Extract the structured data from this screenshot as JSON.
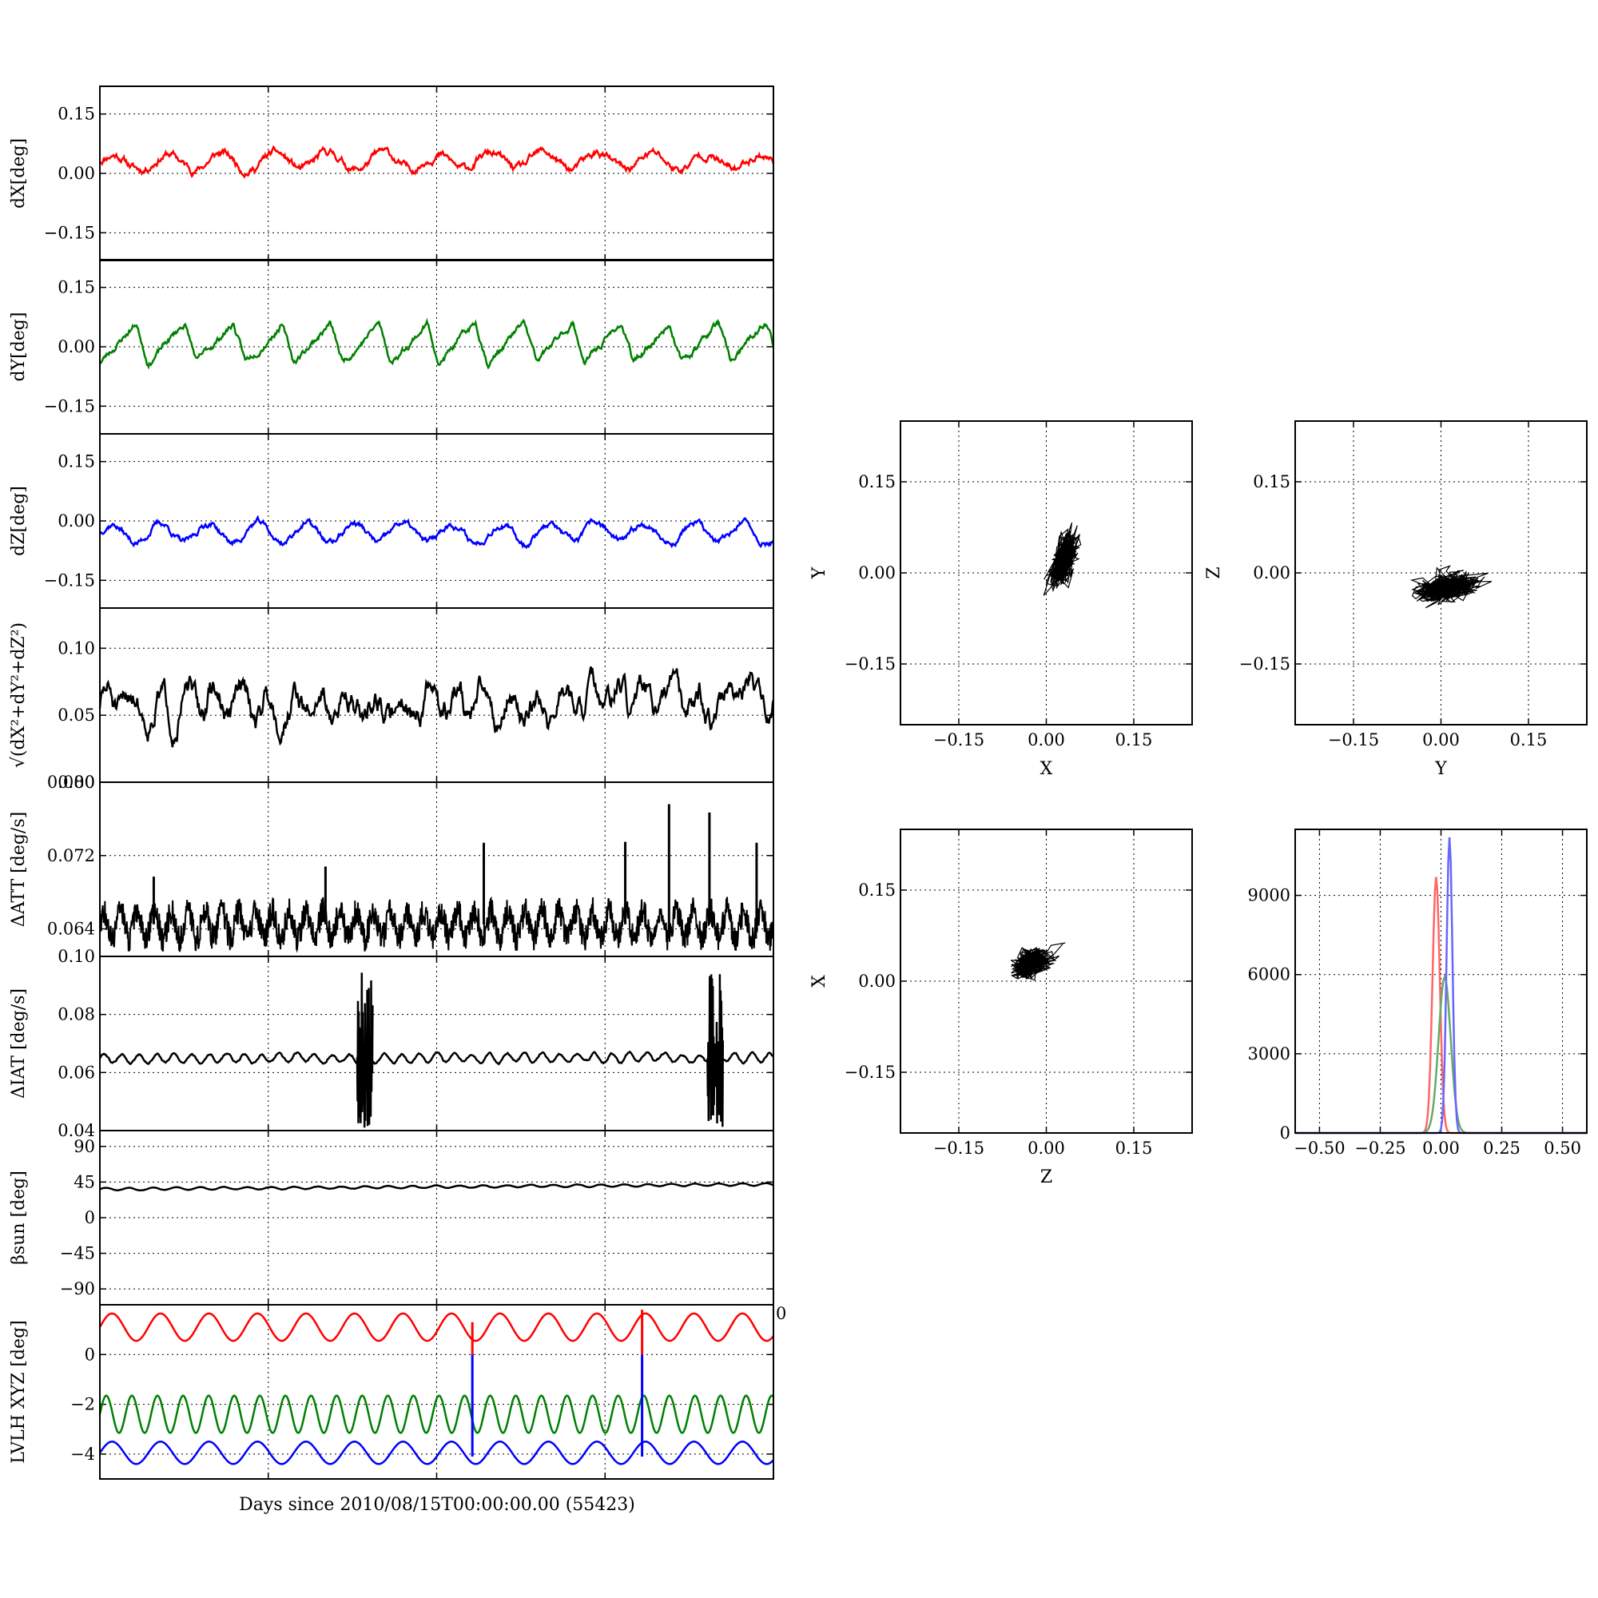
{
  "figure": {
    "xlabel": "Days since 2010/08/15T00:00:00.00 (55423)",
    "colors": {
      "red": "#ff0000",
      "green": "#008000",
      "blue": "#0000ff",
      "black": "#000000"
    }
  },
  "chart_data": [
    {
      "id": "dX",
      "type": "line",
      "ylabel": "dX[deg]",
      "ylim": [
        -0.22,
        0.22
      ],
      "yticks": [
        0.15,
        0.0,
        -0.15
      ],
      "ytick_labels": [
        "0.15",
        "0.00",
        "−0.15"
      ],
      "xlim": [
        0,
        1
      ],
      "grid": true,
      "series": [
        {
          "color": "#ff0000",
          "base": 0.03,
          "period": 0.08,
          "amp": 0.02,
          "noise": 0.012,
          "seed": 11
        }
      ]
    },
    {
      "id": "dY",
      "type": "line",
      "ylabel": "dY[deg]",
      "ylim": [
        -0.22,
        0.22
      ],
      "yticks": [
        0.15,
        0.0,
        -0.15
      ],
      "ytick_labels": [
        "0.15",
        "0.00",
        "−0.15"
      ],
      "xlim": [
        0,
        1
      ],
      "grid": true,
      "series": [
        {
          "color": "#008000",
          "base": 0.01,
          "period": 0.072,
          "amp": 0.05,
          "noise": 0.01,
          "seed": 23,
          "sawtooth": true
        }
      ]
    },
    {
      "id": "dZ",
      "type": "line",
      "ylabel": "dZ[deg]",
      "ylim": [
        -0.22,
        0.22
      ],
      "yticks": [
        0.15,
        0.0,
        -0.15
      ],
      "ytick_labels": [
        "0.15",
        "0.00",
        "−0.15"
      ],
      "xlim": [
        0,
        1
      ],
      "grid": true,
      "series": [
        {
          "color": "#0000ff",
          "base": -0.03,
          "period": 0.072,
          "amp": 0.025,
          "noise": 0.01,
          "seed": 37
        }
      ]
    },
    {
      "id": "dR",
      "type": "line",
      "ylabel": "√(dX²+dY²+dZ²)",
      "ylim": [
        0.0,
        0.13
      ],
      "yticks": [
        0.1,
        0.05,
        0.0
      ],
      "ytick_labels": [
        "0.10",
        "0.05",
        "0.00"
      ],
      "xlim": [
        0,
        1
      ],
      "grid": true,
      "series": [
        {
          "color": "#000000",
          "base": 0.058,
          "period": 0.04,
          "amp": 0.01,
          "noise": 0.012,
          "seed": 51
        }
      ]
    },
    {
      "id": "dATT",
      "type": "line",
      "ylabel": "ΔATT [deg/s]",
      "ylim": [
        0.061,
        0.08
      ],
      "yticks": [
        0.08,
        0.072,
        0.064
      ],
      "ytick_labels": [
        "0.080",
        "0.072",
        "0.064"
      ],
      "xlim": [
        0,
        1
      ],
      "grid": true,
      "series": [
        {
          "color": "#000000",
          "base": 0.0645,
          "period": 0.025,
          "amp": 0.0015,
          "noise": 0.0012,
          "seed": 67,
          "dense": true
        }
      ],
      "spikes": [
        {
          "x": 0.08,
          "y": 0.0697
        },
        {
          "x": 0.335,
          "y": 0.0708
        },
        {
          "x": 0.57,
          "y": 0.0734
        },
        {
          "x": 0.78,
          "y": 0.0735
        },
        {
          "x": 0.845,
          "y": 0.0776
        },
        {
          "x": 0.905,
          "y": 0.0767
        },
        {
          "x": 0.975,
          "y": 0.0734
        }
      ]
    },
    {
      "id": "dIAT",
      "type": "line",
      "ylabel": "ΔIAT [deg/s]",
      "ylim": [
        0.04,
        0.1
      ],
      "yticks": [
        0.1,
        0.08,
        0.06,
        0.04
      ],
      "ytick_labels": [
        "0.10",
        "0.08",
        "0.06",
        "0.04"
      ],
      "xlim": [
        0,
        1
      ],
      "grid": true,
      "series": [
        {
          "color": "#000000",
          "base": 0.065,
          "period": 0.026,
          "amp": 0.0015,
          "noise": 0.0005,
          "seed": 79
        }
      ],
      "bursts": [
        {
          "x0": 0.382,
          "x1": 0.405,
          "lo": 0.041,
          "hi": 0.095
        },
        {
          "x0": 0.902,
          "x1": 0.925,
          "lo": 0.041,
          "hi": 0.094
        }
      ]
    },
    {
      "id": "beta",
      "type": "line",
      "ylabel": "βsun [deg]",
      "ylim": [
        -110,
        110
      ],
      "yticks": [
        90,
        45,
        0,
        -45,
        -90
      ],
      "ytick_labels": [
        "90",
        "45",
        "0",
        "−45",
        "−90"
      ],
      "xlim": [
        0,
        1
      ],
      "grid": true,
      "series": [
        {
          "color": "#000000",
          "base": 36,
          "trend": 6,
          "period": 0.035,
          "amp": 1.5,
          "noise": 0.3,
          "seed": 83
        }
      ]
    },
    {
      "id": "lvlh",
      "type": "line",
      "ylabel": "LVLH XYZ [deg]",
      "ylim": [
        -5,
        2
      ],
      "yticks": [
        2,
        0,
        -2,
        -4
      ],
      "ytick_labels": [
        "",
        "0",
        "−2",
        "−4"
      ],
      "xlim": [
        0,
        1
      ],
      "grid": true,
      "series": [
        {
          "color": "#ff0000",
          "base": 1.1,
          "period": 0.072,
          "amp": 0.55,
          "noise": 0.0,
          "seed": 1
        },
        {
          "color": "#008000",
          "base": -2.4,
          "period": 0.038,
          "amp": 0.75,
          "noise": 0.0,
          "seed": 2
        },
        {
          "color": "#0000ff",
          "base": -3.95,
          "period": 0.072,
          "amp": 0.45,
          "noise": 0.0,
          "seed": 3
        }
      ],
      "vlines": [
        {
          "x": 0.553,
          "y0": -4.1,
          "y1": 0.0,
          "color": "#0000ff"
        },
        {
          "x": 0.553,
          "y0": 0.0,
          "y1": 1.3,
          "color": "#ff0000"
        },
        {
          "x": 0.805,
          "y0": -4.1,
          "y1": 0.0,
          "color": "#0000ff"
        },
        {
          "x": 0.805,
          "y0": 0.0,
          "y1": 1.8,
          "color": "#ff0000"
        }
      ],
      "edge_labels": [
        "0",
        "0"
      ]
    },
    {
      "id": "XY",
      "type": "scatter",
      "xlabel": "X",
      "ylabel": "Y",
      "xlim": [
        -0.25,
        0.25
      ],
      "ylim": [
        -0.25,
        0.25
      ],
      "xticks": [
        -0.15,
        0.0,
        0.15
      ],
      "xtick_labels": [
        "−0.15",
        "0.00",
        "0.15"
      ],
      "yticks": [
        0.15,
        0.0,
        -0.15
      ],
      "ytick_labels": [
        "0.15",
        "0.00",
        "−0.15"
      ],
      "grid": true,
      "cloud": {
        "cx": 0.03,
        "cy": 0.02,
        "sx": 0.015,
        "sy": 0.04,
        "rot": -0.3,
        "n": 900,
        "seed": 101,
        "color": "#000000"
      }
    },
    {
      "id": "YZ",
      "type": "scatter",
      "xlabel": "Y",
      "ylabel": "Z",
      "xlim": [
        -0.25,
        0.25
      ],
      "ylim": [
        -0.25,
        0.25
      ],
      "xticks": [
        -0.15,
        0.0,
        0.15
      ],
      "xtick_labels": [
        "−0.15",
        "0.00",
        "0.15"
      ],
      "yticks": [
        0.15,
        0.0,
        -0.15
      ],
      "ytick_labels": [
        "0.15",
        "0.00",
        "−0.15"
      ],
      "grid": true,
      "cloud": {
        "cx": 0.01,
        "cy": -0.025,
        "sx": 0.045,
        "sy": 0.018,
        "rot": 0.2,
        "n": 900,
        "seed": 113,
        "color": "#000000"
      }
    },
    {
      "id": "ZX",
      "type": "scatter",
      "xlabel": "Z",
      "ylabel": "X",
      "xlim": [
        -0.25,
        0.25
      ],
      "ylim": [
        -0.25,
        0.25
      ],
      "xticks": [
        -0.15,
        0.0,
        0.15
      ],
      "xtick_labels": [
        "−0.15",
        "0.00",
        "0.15"
      ],
      "yticks": [
        0.15,
        0.0,
        -0.15
      ],
      "ytick_labels": [
        "0.15",
        "0.00",
        "−0.15"
      ],
      "grid": true,
      "cloud": {
        "cx": -0.025,
        "cy": 0.03,
        "sx": 0.028,
        "sy": 0.018,
        "rot": 0.35,
        "n": 900,
        "seed": 127,
        "color": "#000000"
      }
    },
    {
      "id": "hist",
      "type": "line",
      "xlim": [
        -0.6,
        0.6
      ],
      "ylim": [
        0,
        11500
      ],
      "xticks": [
        -0.5,
        -0.25,
        0.0,
        0.25,
        0.5
      ],
      "xtick_labels": [
        "−0.50",
        "−0.25",
        "0.00",
        "0.25",
        "0.50"
      ],
      "yticks": [
        0,
        3000,
        6000,
        9000
      ],
      "ytick_labels": [
        "0",
        "3000",
        "6000",
        "9000"
      ],
      "grid": true,
      "series": [
        {
          "color": "#ff6666",
          "mu": -0.02,
          "sigma": 0.015,
          "peak": 9700
        },
        {
          "color": "#66aa66",
          "mu": 0.015,
          "sigma": 0.025,
          "peak": 5900
        },
        {
          "color": "#6666ff",
          "mu": 0.035,
          "sigma": 0.012,
          "peak": 11200
        }
      ]
    }
  ]
}
